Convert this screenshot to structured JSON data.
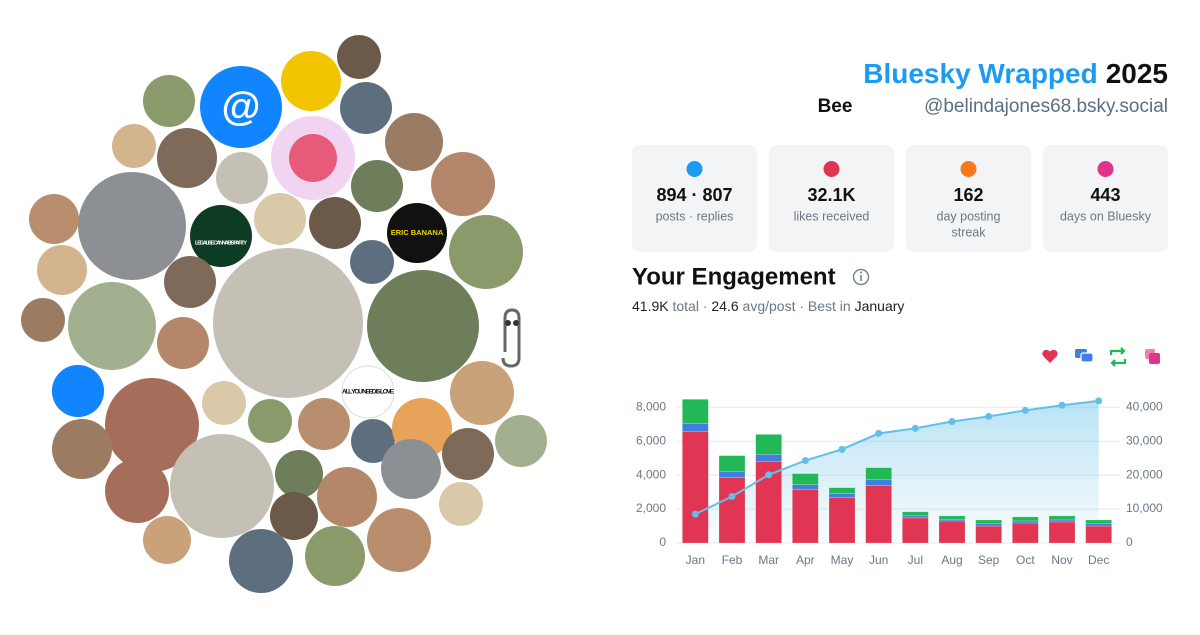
{
  "header": {
    "title": "Bluesky Wrapped",
    "year": "2025",
    "name": "Bee",
    "handle": "@belindajones68.bsky.social"
  },
  "stats": [
    {
      "value": "894 · 807",
      "label": [
        "posts · replies"
      ]
    },
    {
      "value": "32.1K",
      "label": [
        "likes received"
      ]
    },
    {
      "value": "162",
      "label": [
        "day posting",
        "streak"
      ]
    },
    {
      "value": "443",
      "label": [
        "days on Bluesky"
      ]
    }
  ],
  "avatar_texts": [
    "LEGALISE CANNABIS PARTY",
    "ERIC BANANA",
    "ALL YOU NEED IS LOVE"
  ],
  "engagement": {
    "title": "Your Engagement",
    "summary": [
      {
        "text": "41.9K",
        "emphasis": true
      },
      {
        "text": " total · ",
        "emphasis": false
      },
      {
        "text": "24.6",
        "emphasis": true
      },
      {
        "text": " avg/post · Best in ",
        "emphasis": false
      },
      {
        "text": "January",
        "emphasis": true
      }
    ]
  },
  "chart_data": {
    "type": "bar",
    "stacked": true,
    "grid": true,
    "categories": [
      "Jan",
      "Feb",
      "Mar",
      "Apr",
      "May",
      "Jun",
      "Jul",
      "Aug",
      "Sep",
      "Oct",
      "Nov",
      "Dec"
    ],
    "series": [
      {
        "color": "#e03553",
        "values": [
          6580,
          3850,
          4800,
          3140,
          2670,
          3380,
          1480,
          1300,
          1000,
          1180,
          1240,
          1000
        ]
      },
      {
        "color": "#3f7fe0",
        "values": [
          470,
          350,
          420,
          300,
          240,
          360,
          120,
          100,
          150,
          120,
          120,
          150
        ]
      },
      {
        "color": "#22b757",
        "values": [
          1420,
          950,
          1180,
          650,
          350,
          700,
          240,
          200,
          210,
          240,
          240,
          210
        ]
      },
      {
        "type": "line",
        "axis": "y2",
        "color": "#62bfe8",
        "values": [
          8500,
          13700,
          20100,
          24300,
          27600,
          32300,
          33800,
          35800,
          37300,
          39100,
          40600,
          41900
        ]
      }
    ],
    "ylim": [
      0,
      8900
    ],
    "yticks": [
      0,
      {
        "value": 2000,
        "label": "2,000"
      },
      {
        "value": 4000,
        "label": "4,000"
      },
      {
        "value": 6000,
        "label": "6,000"
      },
      {
        "value": 8000,
        "label": "8,000"
      }
    ],
    "y2lim": [
      0,
      44500
    ],
    "y2ticks": [
      0,
      {
        "value": 10000,
        "label": "10,000"
      },
      {
        "value": 20000,
        "label": "20,000"
      },
      {
        "value": 30000,
        "label": "30,000"
      },
      {
        "value": 40000,
        "label": "40,000"
      }
    ]
  }
}
